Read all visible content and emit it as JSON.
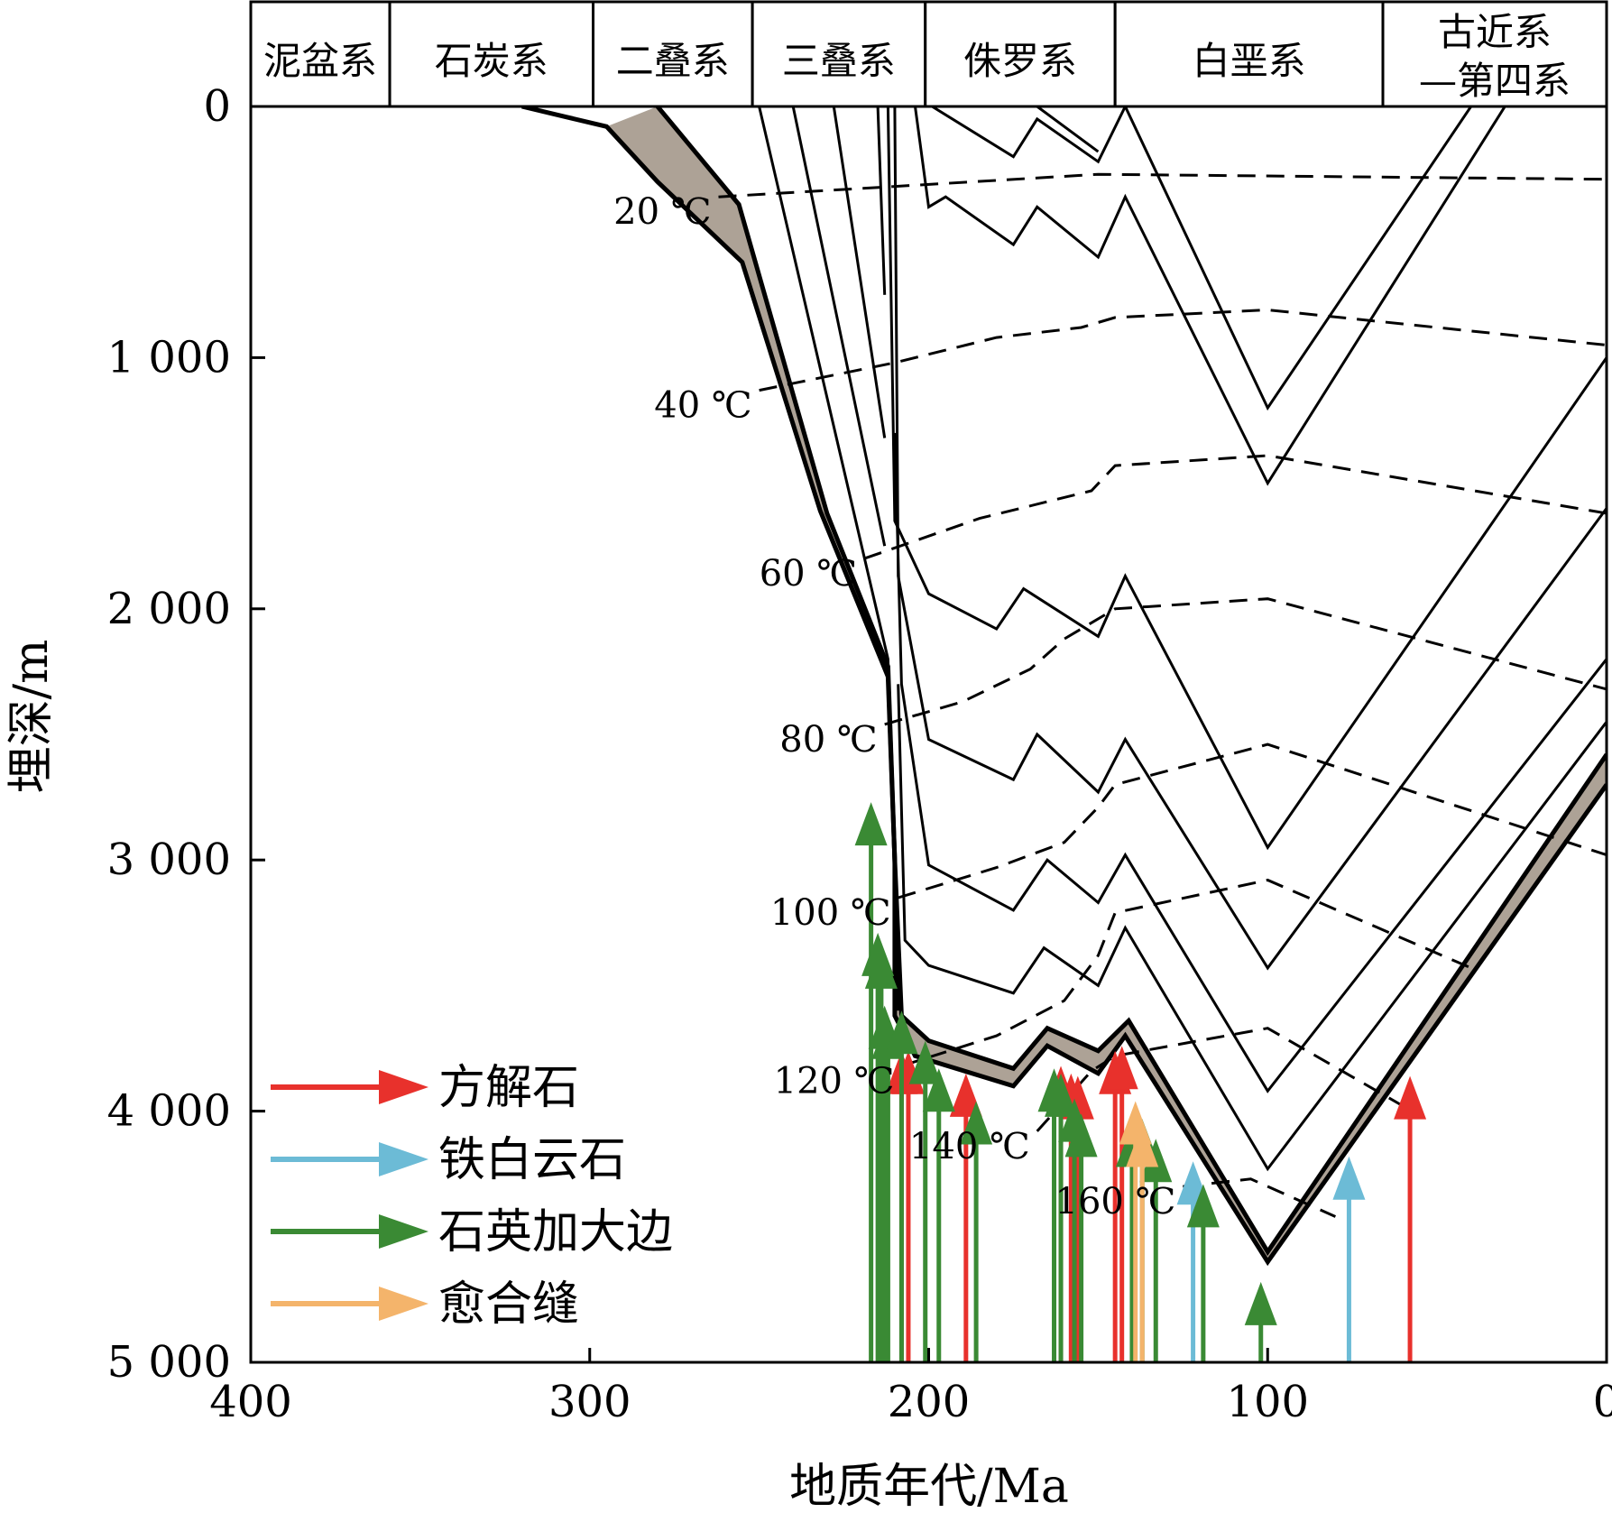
{
  "chart_data": {
    "type": "line",
    "xlabel": "地质年代/Ma",
    "ylabel": "埋深/m",
    "xlim": [
      400,
      0
    ],
    "ylim": [
      0,
      5000
    ],
    "x_ticks": [
      400,
      300,
      200,
      100,
      0
    ],
    "y_ticks": [
      0,
      1000,
      2000,
      3000,
      4000,
      5000
    ],
    "x_tick_labels": [
      "400",
      "300",
      "200",
      "100",
      "0"
    ],
    "y_tick_labels": [
      "0",
      "1 000",
      "2 000",
      "3 000",
      "4 000",
      "5 000"
    ],
    "periods": [
      {
        "label": "泥盆系",
        "start": 400,
        "end": 359
      },
      {
        "label": "石炭系",
        "start": 359,
        "end": 299
      },
      {
        "label": "二叠系",
        "start": 299,
        "end": 252
      },
      {
        "label": "三叠系",
        "start": 252,
        "end": 201
      },
      {
        "label": "侏罗系",
        "start": 201,
        "end": 145
      },
      {
        "label": "白垩系",
        "start": 145,
        "end": 66
      },
      {
        "label": "古近系",
        "label2": "—第四系",
        "start": 66,
        "end": 0
      }
    ],
    "burial_curves": [
      [
        [
          320,
          0
        ],
        [
          295,
          80
        ],
        [
          280,
          300
        ],
        [
          255,
          620
        ],
        [
          232,
          1610
        ],
        [
          212,
          2270
        ],
        [
          210,
          3000
        ],
        [
          210,
          3620
        ],
        [
          204,
          3780
        ],
        [
          175,
          3900
        ],
        [
          165,
          3740
        ],
        [
          150,
          3850
        ],
        [
          142,
          3700
        ],
        [
          100,
          4600
        ],
        [
          0,
          2700
        ]
      ],
      [
        [
          280,
          0
        ],
        [
          256,
          390
        ],
        [
          230,
          1620
        ],
        [
          212,
          2230
        ],
        [
          210,
          3000
        ],
        [
          208,
          3620
        ],
        [
          200,
          3720
        ],
        [
          175,
          3830
        ],
        [
          165,
          3670
        ],
        [
          150,
          3760
        ],
        [
          141,
          3640
        ],
        [
          100,
          4560
        ],
        [
          0,
          2580
        ]
      ],
      [
        [
          250,
          0
        ],
        [
          212,
          2200
        ],
        [
          209,
          3600
        ]
      ],
      [
        [
          240,
          0
        ],
        [
          213,
          1750
        ]
      ],
      [
        [
          228,
          0
        ],
        [
          213,
          1320
        ]
      ],
      [
        [
          215,
          0
        ],
        [
          213,
          750
        ]
      ],
      [
        [
          212,
          0
        ],
        [
          210,
          1650
        ],
        [
          200,
          1940
        ],
        [
          190,
          2010
        ],
        [
          180,
          2080
        ],
        [
          172,
          1920
        ],
        [
          150,
          2110
        ],
        [
          142,
          1870
        ],
        [
          100,
          2950
        ],
        [
          0,
          1000
        ]
      ],
      [
        [
          210,
          0
        ],
        [
          209,
          1870
        ],
        [
          200,
          2520
        ],
        [
          175,
          2680
        ],
        [
          168,
          2500
        ],
        [
          150,
          2730
        ],
        [
          142,
          2520
        ],
        [
          100,
          3430
        ],
        [
          0,
          1600
        ]
      ],
      [
        [
          210,
          1300
        ],
        [
          208,
          2300
        ],
        [
          200,
          3020
        ],
        [
          175,
          3200
        ],
        [
          165,
          3000
        ],
        [
          150,
          3170
        ],
        [
          142,
          2980
        ],
        [
          100,
          3920
        ],
        [
          0,
          2200
        ]
      ],
      [
        [
          209,
          2300
        ],
        [
          207,
          3320
        ],
        [
          200,
          3420
        ],
        [
          175,
          3530
        ],
        [
          166,
          3350
        ],
        [
          150,
          3500
        ],
        [
          142,
          3270
        ],
        [
          100,
          4230
        ],
        [
          0,
          2450
        ]
      ],
      [
        [
          204,
          0
        ],
        [
          200,
          400
        ],
        [
          195,
          360
        ],
        [
          175,
          550
        ],
        [
          168,
          400
        ],
        [
          150,
          600
        ],
        [
          142,
          360
        ],
        [
          100,
          1500
        ],
        [
          30,
          0
        ]
      ],
      [
        [
          199,
          0
        ],
        [
          175,
          200
        ],
        [
          168,
          50
        ],
        [
          150,
          220
        ],
        [
          142,
          0
        ],
        [
          100,
          1200
        ],
        [
          40,
          0
        ]
      ],
      [
        [
          193,
          0
        ],
        [
          168,
          0
        ],
        [
          150,
          180
        ]
      ]
    ],
    "isotherms": [
      {
        "label": "20 ℃",
        "points": [
          [
            262,
            360
          ],
          [
            212,
            320
          ],
          [
            150,
            270
          ],
          [
            0,
            290
          ]
        ]
      },
      {
        "label": "40 ℃",
        "points": [
          [
            250,
            1130
          ],
          [
            210,
            1020
          ],
          [
            180,
            920
          ],
          [
            155,
            880
          ],
          [
            145,
            840
          ],
          [
            100,
            810
          ],
          [
            0,
            950
          ]
        ]
      },
      {
        "label": "60 ℃",
        "points": [
          [
            219,
            1800
          ],
          [
            185,
            1640
          ],
          [
            152,
            1530
          ],
          [
            145,
            1430
          ],
          [
            100,
            1390
          ],
          [
            0,
            1620
          ]
        ]
      },
      {
        "label": "80 ℃",
        "points": [
          [
            213,
            2460
          ],
          [
            190,
            2370
          ],
          [
            170,
            2240
          ],
          [
            160,
            2120
          ],
          [
            145,
            2000
          ],
          [
            100,
            1960
          ],
          [
            0,
            2320
          ]
        ]
      },
      {
        "label": "100 ℃",
        "points": [
          [
            209,
            3150
          ],
          [
            180,
            3030
          ],
          [
            160,
            2930
          ],
          [
            150,
            2790
          ],
          [
            145,
            2700
          ],
          [
            100,
            2540
          ],
          [
            0,
            2980
          ]
        ]
      },
      {
        "label": "120 ℃",
        "points": [
          [
            208,
            3820
          ],
          [
            180,
            3700
          ],
          [
            160,
            3560
          ],
          [
            150,
            3380
          ],
          [
            145,
            3210
          ],
          [
            100,
            3080
          ],
          [
            40,
            3430
          ]
        ]
      },
      {
        "label": "140 ℃",
        "points": [
          [
            168,
            4080
          ],
          [
            152,
            3840
          ],
          [
            145,
            3780
          ],
          [
            100,
            3670
          ],
          [
            60,
            3980
          ]
        ]
      },
      {
        "label": "160 ℃",
        "points": [
          [
            125,
            4300
          ],
          [
            105,
            4270
          ],
          [
            80,
            4420
          ]
        ]
      }
    ],
    "series": [
      {
        "name": "方解石",
        "color": "#e8312c",
        "events": [
          [
            208,
            3760
          ],
          [
            206,
            3760
          ],
          [
            189,
            3850
          ],
          [
            161,
            3820
          ],
          [
            158,
            3850
          ],
          [
            156,
            3860
          ],
          [
            145,
            3760
          ],
          [
            143,
            3740
          ],
          [
            58,
            3860
          ]
        ]
      },
      {
        "name": "铁白云石",
        "color": "#6cbbd6",
        "events": [
          [
            122,
            4200
          ],
          [
            76,
            4180
          ]
        ]
      },
      {
        "name": "石英加大边",
        "color": "#3a8a34",
        "events": [
          [
            217,
            2770
          ],
          [
            215,
            3290
          ],
          [
            214,
            3340
          ],
          [
            213,
            3580
          ],
          [
            212,
            3620
          ],
          [
            208,
            3600
          ],
          [
            201,
            3720
          ],
          [
            197,
            3830
          ],
          [
            186,
            3960
          ],
          [
            163,
            3830
          ],
          [
            161,
            3850
          ],
          [
            157,
            3950
          ],
          [
            155,
            4010
          ],
          [
            140,
            4050
          ],
          [
            137,
            4030
          ],
          [
            133,
            4110
          ],
          [
            119,
            4290
          ],
          [
            102,
            4680
          ]
        ]
      },
      {
        "name": "愈合缝",
        "color": "#f4b46b",
        "events": [
          [
            139,
            3960
          ],
          [
            137,
            4050
          ]
        ]
      }
    ],
    "legend_position": "bottom-left",
    "grid": false
  }
}
